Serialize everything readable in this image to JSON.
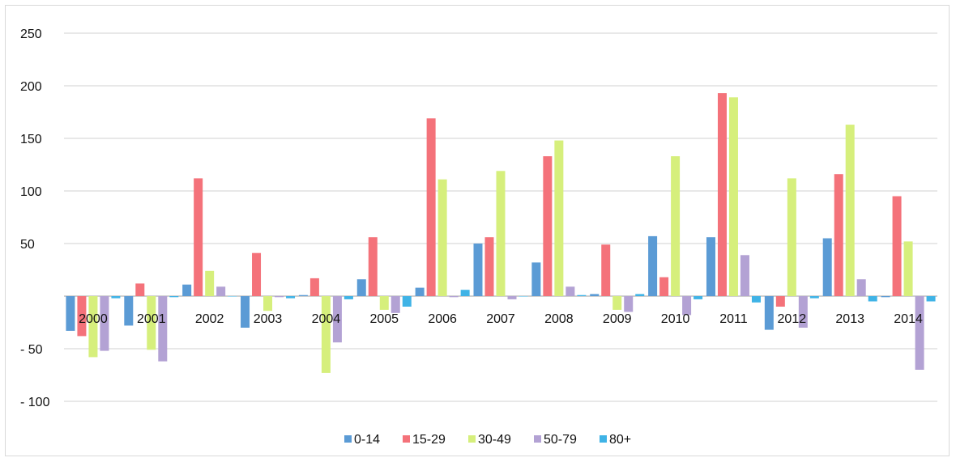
{
  "chart_data": {
    "type": "bar",
    "title": "",
    "xlabel": "",
    "ylabel": "",
    "categories": [
      "2000",
      "2001",
      "2002",
      "2003",
      "2004",
      "2005",
      "2006",
      "2007",
      "2008",
      "2009",
      "2010",
      "2011",
      "2012",
      "2013",
      "2014"
    ],
    "series": [
      {
        "name": "0-14",
        "color": "#5b9bd5",
        "values": [
          -33,
          -28,
          11,
          -30,
          1,
          16,
          8,
          50,
          32,
          2,
          57,
          56,
          -32,
          55,
          -1
        ]
      },
      {
        "name": "15-29",
        "color": "#f4727a",
        "values": [
          -38,
          12,
          112,
          41,
          17,
          56,
          169,
          56,
          133,
          49,
          18,
          193,
          -10,
          116,
          95
        ]
      },
      {
        "name": "30-49",
        "color": "#d6ef7c",
        "values": [
          -58,
          -51,
          24,
          -14,
          -73,
          -13,
          111,
          119,
          148,
          -13,
          133,
          189,
          112,
          163,
          52
        ]
      },
      {
        "name": "50-79",
        "color": "#b3a2d4",
        "values": [
          -52,
          -62,
          9,
          -1,
          -44,
          -16,
          -1,
          -3,
          9,
          -15,
          -18,
          39,
          -30,
          16,
          -70
        ]
      },
      {
        "name": "80+",
        "color": "#3fb3e6",
        "values": [
          -2,
          -1,
          0,
          -2,
          -3,
          -10,
          6,
          0,
          1,
          2,
          -3,
          -6,
          -2,
          -5,
          -5
        ]
      }
    ],
    "y_ticks": [
      {
        "value": 250,
        "label": "250"
      },
      {
        "value": 200,
        "label": "200"
      },
      {
        "value": 150,
        "label": "150"
      },
      {
        "value": 100,
        "label": "100"
      },
      {
        "value": 50,
        "label": "50"
      },
      {
        "value": -50,
        "label": "- 50"
      },
      {
        "value": -100,
        "label": "- 100"
      }
    ],
    "ylim": [
      -100,
      250
    ],
    "grid": true,
    "legend": "bottom"
  }
}
